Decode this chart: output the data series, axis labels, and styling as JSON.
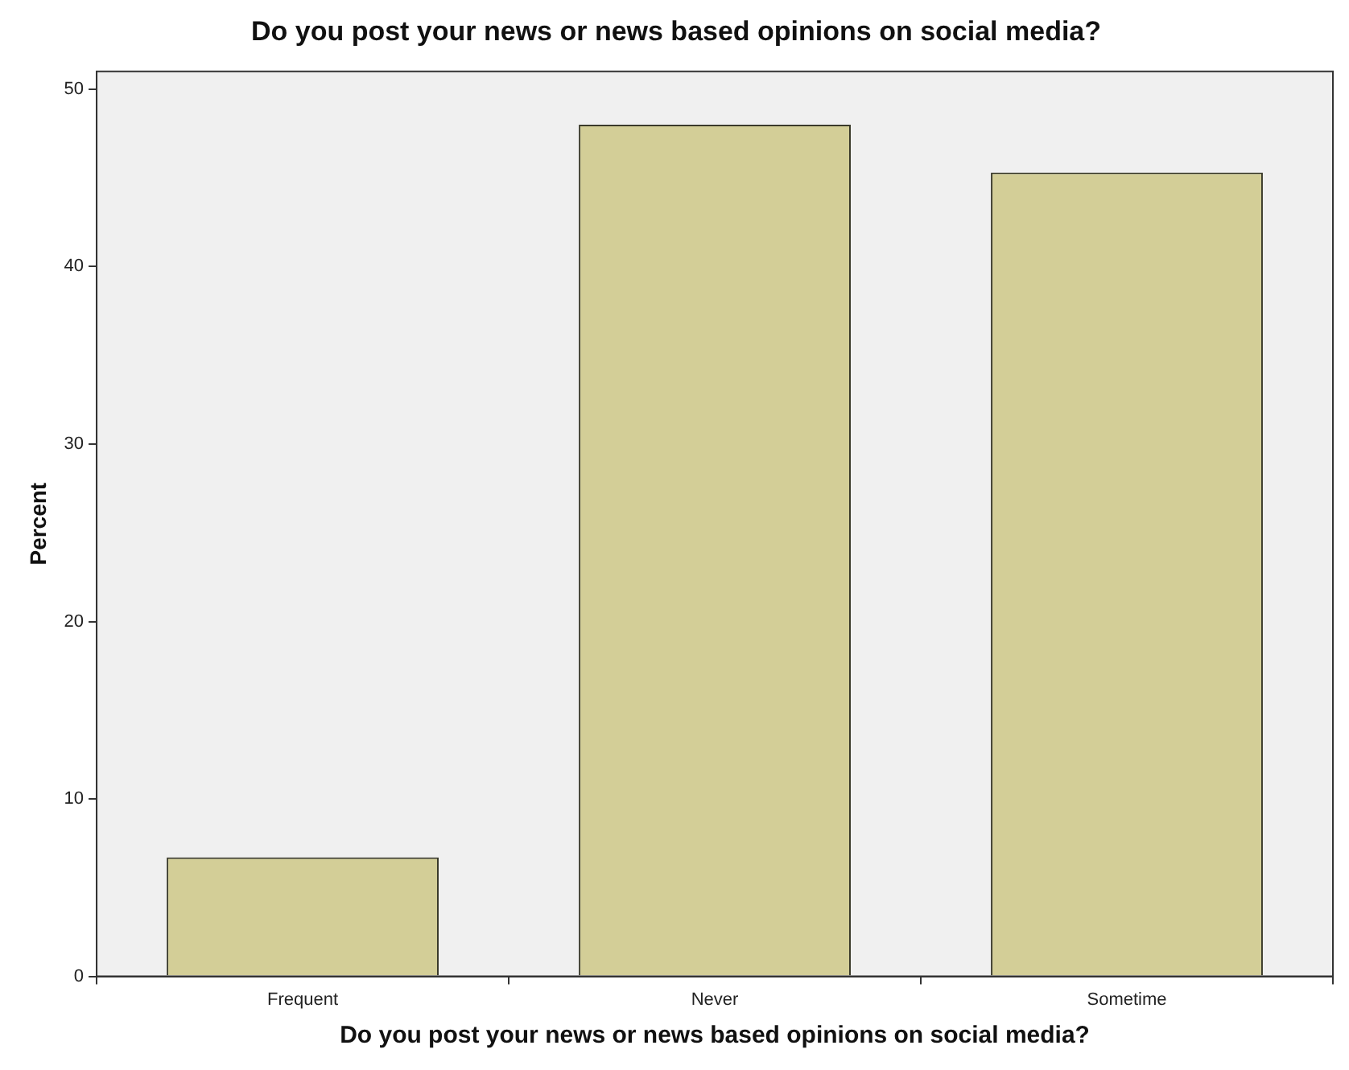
{
  "chart_data": {
    "type": "bar",
    "title": "Do you post your news or news based opinions on social media?",
    "xlabel": "Do you post your news or news based opinions on social media?",
    "ylabel": "Percent",
    "categories": [
      "Frequent",
      "Never",
      "Sometime"
    ],
    "values": [
      6.7,
      48.0,
      45.3
    ],
    "color": "#d3ce97",
    "ylim": [
      0,
      51
    ],
    "yticks": [
      0,
      10,
      20,
      30,
      40,
      50
    ],
    "grid": false,
    "legend": false
  }
}
